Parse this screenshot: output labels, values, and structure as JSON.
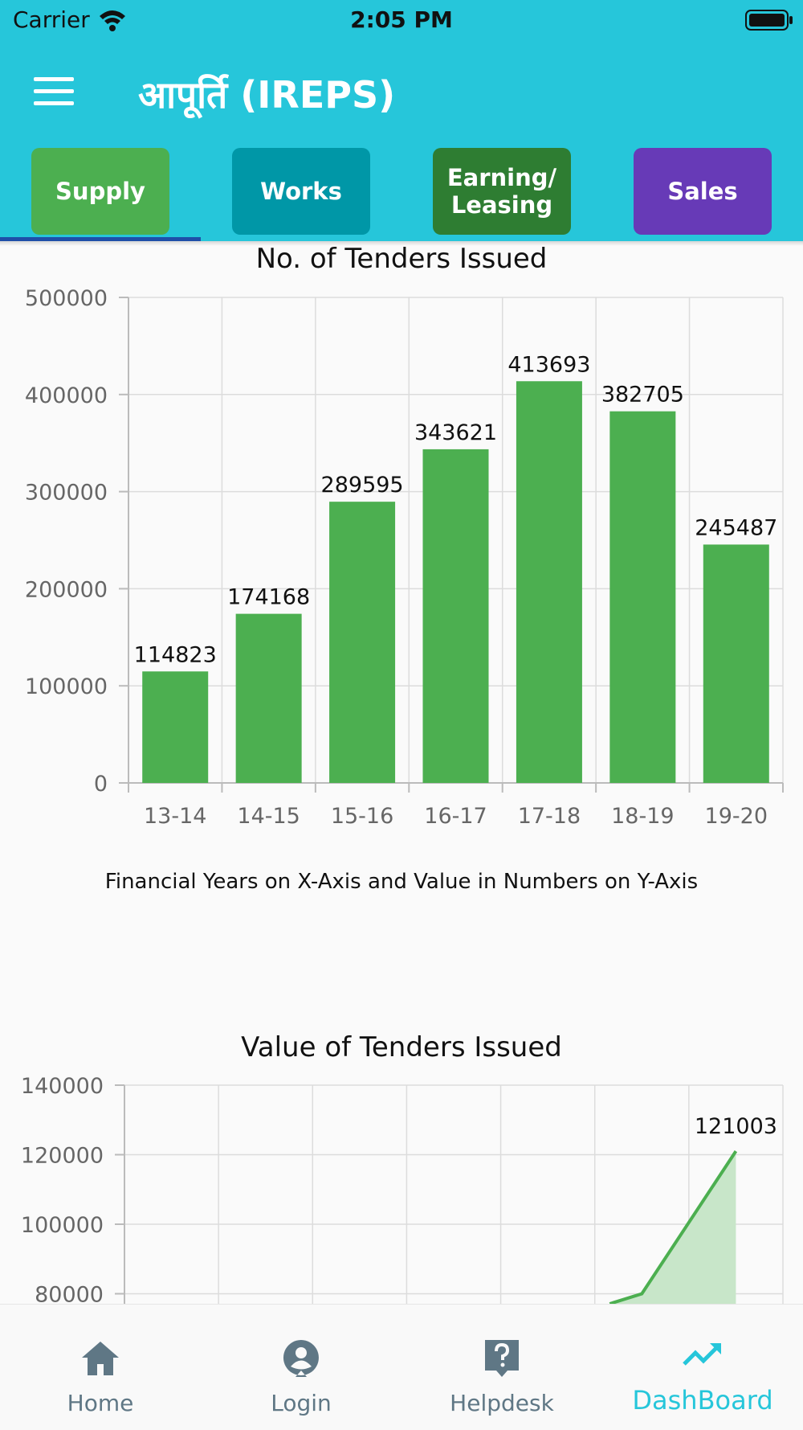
{
  "status_bar": {
    "carrier": "Carrier",
    "time": "2:05 PM"
  },
  "header": {
    "title": "आपूर्ति (IREPS)"
  },
  "tabs": [
    {
      "label": "Supply",
      "color": "#4caf50"
    },
    {
      "label": "Works",
      "color": "#0097a7"
    },
    {
      "label": "Earning/ Leasing",
      "color": "#2e7d32"
    },
    {
      "label": "Sales",
      "color": "#673ab7"
    }
  ],
  "chart1_caption": "Financial Years on X-Axis and Value in Numbers on Y-Axis",
  "chart_data": [
    {
      "type": "bar",
      "title": "No. of Tenders Issued",
      "categories": [
        "13-14",
        "14-15",
        "15-16",
        "16-17",
        "17-18",
        "18-19",
        "19-20"
      ],
      "values": [
        114823,
        174168,
        289595,
        343621,
        413693,
        382705,
        245487
      ],
      "ylim": [
        0,
        500000
      ],
      "yticks": [
        0,
        100000,
        200000,
        300000,
        400000,
        500000
      ],
      "ytick_labels": [
        "0",
        "100000",
        "200000",
        "300000",
        "400000",
        "500000"
      ],
      "grid": true,
      "bar_color": "#4caf50"
    },
    {
      "type": "area",
      "title": "Value of Tenders Issued",
      "visible_points": [
        {
          "x": 5,
          "y": 80000
        },
        {
          "x": 6,
          "y": 121003
        }
      ],
      "point_labels": [
        "",
        "121003"
      ],
      "ylim_visible": [
        80000,
        140000
      ],
      "yticks": [
        80000,
        100000,
        120000,
        140000
      ],
      "ytick_labels": [
        "80000",
        "100000",
        "120000",
        "140000"
      ],
      "grid": true,
      "line_color": "#4caf50",
      "fill_color": "#c8e6c9"
    }
  ],
  "bottom_nav": [
    {
      "label": "Home",
      "icon": "home-icon"
    },
    {
      "label": "Login",
      "icon": "user-icon"
    },
    {
      "label": "Helpdesk",
      "icon": "help-icon"
    },
    {
      "label": "DashBoard",
      "icon": "trending-icon",
      "active": true
    }
  ]
}
